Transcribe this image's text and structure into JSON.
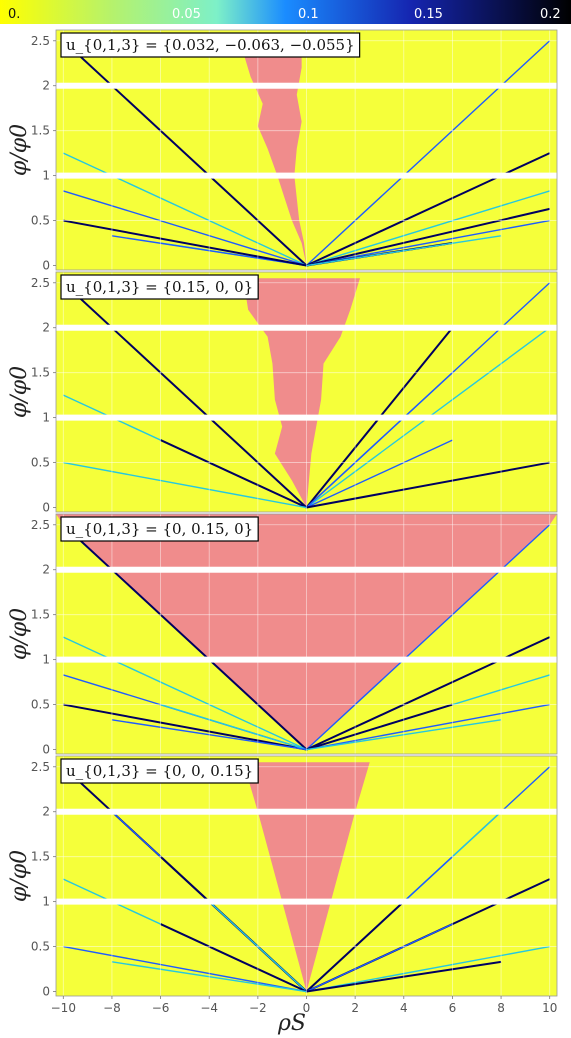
{
  "colorbar": {
    "ticks": [
      "0.",
      "0.05",
      "0.1",
      "0.15",
      "0.2"
    ],
    "min": 0,
    "max": 0.2,
    "gradient": [
      "#ffff00",
      "#b4f26e",
      "#7df0c8",
      "#1a8cff",
      "#1525b0",
      "#000000"
    ]
  },
  "colors": {
    "background": "#f5ff3a",
    "region": "#f08c8c",
    "grid": "#ffffff"
  },
  "chart_data": [
    {
      "type": "heatmap",
      "annotation": "u_{0,1,3} = {0.032, −0.063, −0.055}",
      "ylabel": "φ/φ0",
      "xlabel": "",
      "xlim": [
        -10.3,
        10.3
      ],
      "ylim": [
        -0.05,
        2.62
      ],
      "xticks": [
        "−10",
        "−8",
        "−6",
        "−4",
        "−2",
        "0",
        "2",
        "4",
        "6",
        "8",
        "10"
      ],
      "yticks": [
        "0",
        "0.5",
        "1",
        "1.5",
        "2",
        "2.5"
      ],
      "region": {
        "name": "pink",
        "left": [
          [
            0,
            0
          ],
          [
            -0.2,
            0.25
          ],
          [
            -0.6,
            0.5
          ],
          [
            -0.9,
            0.75
          ],
          [
            -1.2,
            1.0
          ],
          [
            -1.6,
            1.3
          ],
          [
            -2.0,
            1.55
          ],
          [
            -1.8,
            1.8
          ],
          [
            -2.3,
            2.1
          ],
          [
            -2.8,
            2.55
          ]
        ],
        "right": [
          [
            0,
            0
          ],
          [
            -0.1,
            0.25
          ],
          [
            -0.3,
            0.5
          ],
          [
            -0.4,
            0.75
          ],
          [
            -0.5,
            1.0
          ],
          [
            -0.4,
            1.3
          ],
          [
            -0.2,
            1.6
          ],
          [
            -0.4,
            1.9
          ],
          [
            -0.2,
            2.2
          ],
          [
            -0.2,
            2.55
          ]
        ]
      },
      "lines": [
        [
          -10,
          2.5
        ],
        [
          10,
          2.5
        ],
        [
          -10,
          1.25
        ],
        [
          10,
          1.25
        ],
        [
          -10,
          0.83
        ],
        [
          10,
          0.83
        ],
        [
          10,
          0.63
        ],
        [
          10,
          0.5
        ],
        [
          -6,
          0.25
        ],
        [
          6,
          0.25
        ],
        [
          -8,
          0.33
        ],
        [
          8,
          0.33
        ],
        [
          -10,
          0.5
        ]
      ]
    },
    {
      "type": "heatmap",
      "annotation": "u_{0,1,3} = {0.15, 0, 0}",
      "ylabel": "φ/φ0",
      "xlabel": "",
      "xlim": [
        -10.3,
        10.3
      ],
      "ylim": [
        -0.05,
        2.62
      ],
      "xticks": [
        "−10",
        "−8",
        "−6",
        "−4",
        "−2",
        "0",
        "2",
        "4",
        "6",
        "8",
        "10"
      ],
      "yticks": [
        "0",
        "0.5",
        "1",
        "1.5",
        "2",
        "2.5"
      ],
      "region": {
        "name": "pink",
        "left": [
          [
            0,
            0
          ],
          [
            -0.6,
            0.3
          ],
          [
            -1.3,
            0.6
          ],
          [
            -1.0,
            0.9
          ],
          [
            -1.3,
            1.2
          ],
          [
            -1.4,
            1.6
          ],
          [
            -1.6,
            1.9
          ],
          [
            -2.4,
            2.2
          ],
          [
            -2.6,
            2.55
          ]
        ],
        "right": [
          [
            0,
            0
          ],
          [
            0.1,
            0.3
          ],
          [
            0.2,
            0.6
          ],
          [
            0.4,
            0.9
          ],
          [
            0.6,
            1.2
          ],
          [
            0.7,
            1.6
          ],
          [
            1.4,
            1.9
          ],
          [
            1.8,
            2.2
          ],
          [
            2.2,
            2.55
          ]
        ]
      },
      "lines": [
        [
          -10,
          2.5
        ],
        [
          10,
          2.5
        ],
        [
          10,
          2.0
        ],
        [
          6,
          2.0
        ],
        [
          6,
          1.5
        ],
        [
          -10,
          1.25
        ],
        [
          -6,
          0.75
        ],
        [
          6,
          0.75
        ],
        [
          -10,
          0.5
        ],
        [
          10,
          0.5
        ]
      ]
    },
    {
      "type": "heatmap",
      "annotation": "u_{0,1,3} = {0, 0.15, 0}",
      "ylabel": "φ/φ0",
      "xlabel": "",
      "xlim": [
        -10.3,
        10.3
      ],
      "ylim": [
        -0.05,
        2.62
      ],
      "xticks": [
        "−10",
        "−8",
        "−6",
        "−4",
        "−2",
        "0",
        "2",
        "4",
        "6",
        "8",
        "10"
      ],
      "yticks": [
        "0",
        "0.5",
        "1",
        "1.5",
        "2",
        "2.5"
      ],
      "region": {
        "name": "pink",
        "left": [
          [
            0,
            0
          ],
          [
            -10,
            2.5
          ],
          [
            -10.3,
            2.62
          ]
        ],
        "right": [
          [
            0,
            0
          ],
          [
            10,
            2.5
          ],
          [
            10.3,
            2.62
          ]
        ]
      },
      "lines": [
        [
          -10,
          2.5
        ],
        [
          10,
          2.5
        ],
        [
          -10,
          1.25
        ],
        [
          10,
          1.25
        ],
        [
          -10,
          0.83
        ],
        [
          10,
          0.83
        ],
        [
          -10,
          0.5
        ],
        [
          10,
          0.5
        ],
        [
          -6,
          0.5
        ],
        [
          6,
          0.5
        ],
        [
          -8,
          0.33
        ],
        [
          8,
          0.33
        ]
      ]
    },
    {
      "type": "heatmap",
      "annotation": "u_{0,1,3} = {0, 0, 0.15}",
      "ylabel": "φ/φ0",
      "xlabel": "ρS",
      "xlim": [
        -10.3,
        10.3
      ],
      "ylim": [
        -0.05,
        2.62
      ],
      "xticks": [
        "−10",
        "−8",
        "−6",
        "−4",
        "−2",
        "0",
        "2",
        "4",
        "6",
        "8",
        "10"
      ],
      "yticks": [
        "0",
        "0.5",
        "1",
        "1.5",
        "2",
        "2.5"
      ],
      "region": {
        "name": "pink",
        "left": [
          [
            0,
            0
          ],
          [
            -0.5,
            0.5
          ],
          [
            -1.0,
            1.0
          ],
          [
            -1.5,
            1.5
          ],
          [
            -2.0,
            2.0
          ],
          [
            -2.6,
            2.55
          ]
        ],
        "right": [
          [
            0,
            0
          ],
          [
            0.5,
            0.5
          ],
          [
            1.0,
            1.0
          ],
          [
            1.5,
            1.5
          ],
          [
            2.0,
            2.0
          ],
          [
            2.6,
            2.55
          ]
        ]
      },
      "lines": [
        [
          -10,
          2.5
        ],
        [
          10,
          2.5
        ],
        [
          -10,
          1.25
        ],
        [
          10,
          1.25
        ],
        [
          -8,
          2.0
        ],
        [
          8,
          2.0
        ],
        [
          -6,
          1.5
        ],
        [
          6,
          1.5
        ],
        [
          -4,
          1.0
        ],
        [
          4,
          1.0
        ],
        [
          -10,
          0.5
        ],
        [
          10,
          0.5
        ],
        [
          -6,
          0.75
        ],
        [
          6,
          0.75
        ],
        [
          -8,
          0.33
        ],
        [
          8,
          0.33
        ]
      ]
    }
  ]
}
